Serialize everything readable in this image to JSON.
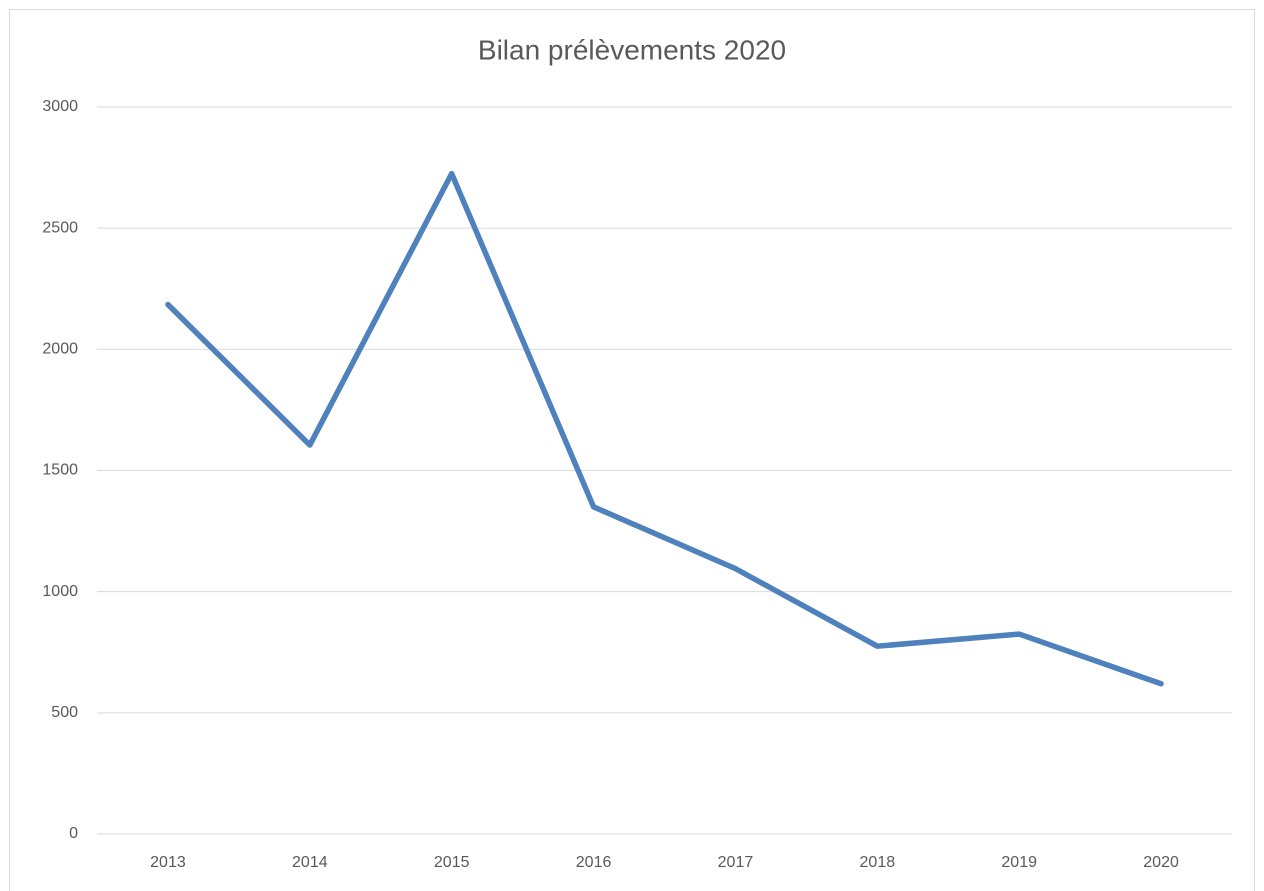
{
  "chart_data": {
    "type": "line",
    "title": "Bilan prélèvements 2020",
    "categories": [
      "2013",
      "2014",
      "2015",
      "2016",
      "2017",
      "2018",
      "2019",
      "2020"
    ],
    "series": [
      {
        "color": "#4f81bd",
        "values": [
          2185,
          1605,
          2725,
          1350,
          1095,
          775,
          825,
          620
        ]
      }
    ],
    "ylim": [
      0,
      3000
    ],
    "yticks": [
      0,
      500,
      1000,
      1500,
      2000,
      2500,
      3000
    ],
    "grid": true
  }
}
